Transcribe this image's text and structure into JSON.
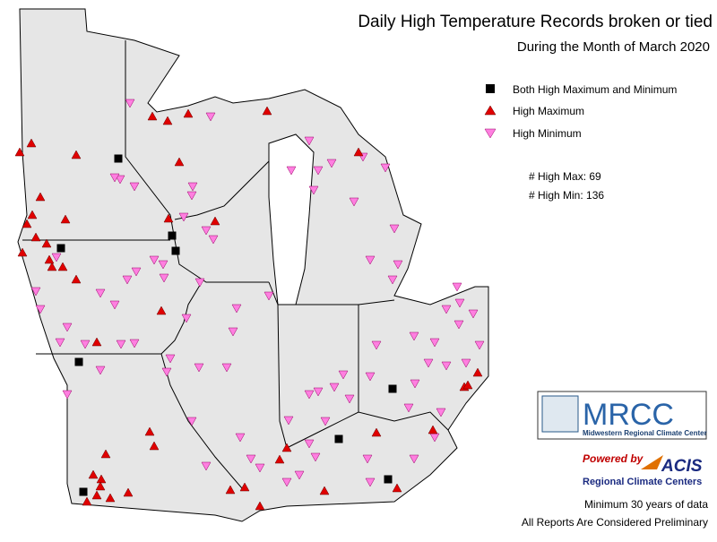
{
  "header": {
    "title": "Daily High Temperature Records broken or tied",
    "subtitle": "During the Month of March 2020"
  },
  "legend": {
    "items": [
      "Both High Maximum and Minimum",
      "High Maximum",
      "High Minimum"
    ]
  },
  "counts": [
    "# High Max: 69",
    "# High Min: 136"
  ],
  "logos": {
    "mrcc": "MRCC",
    "mrcc_name": "Midwestern Regional Climate Center",
    "powered": "Powered by",
    "acis": "ACIS",
    "rcc": "Regional Climate Centers"
  },
  "footer": [
    "Minimum 30 years of data",
    "All Reports Are Considered Preliminary"
  ]
}
